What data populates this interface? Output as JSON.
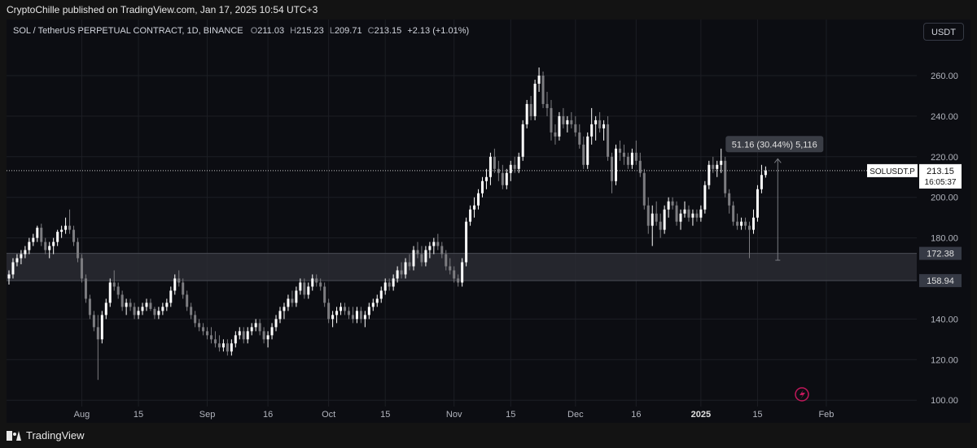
{
  "header": {
    "published_text": "CryptoChille published on TradingView.com, Jan 17, 2025 10:54 UTC+3"
  },
  "legend": {
    "symbol": "SOL / TetherUS PERPETUAL CONTRACT, 1D, BINANCE",
    "o_label": "O",
    "o_value": "211.03",
    "h_label": "H",
    "h_value": "215.23",
    "l_label": "L",
    "l_value": "209.71",
    "c_label": "C",
    "c_value": "213.15",
    "change": "+2.13 (+1.01%)"
  },
  "currency_button": "USDT",
  "footer": {
    "brand": "TradingView"
  },
  "colors": {
    "up_candle": "#ffffff",
    "down_candle": "#7c7c80",
    "zone_fill": "#2a2c33",
    "grid": "#1c1e24",
    "axis_text": "#b2b5be"
  },
  "chart_data": {
    "type": "candlestick",
    "symbol": "SOLUSDT.P",
    "timeframe": "1D",
    "ylim": [
      100,
      270
    ],
    "y_ticks": [
      "260.00",
      "240.00",
      "220.00",
      "200.00",
      "180.00",
      "140.00",
      "120.00",
      "100.00"
    ],
    "x_ticks": [
      {
        "label": "Aug",
        "date": "2024-08-01"
      },
      {
        "label": "15",
        "date": "2024-08-15"
      },
      {
        "label": "Sep",
        "date": "2024-09-01"
      },
      {
        "label": "16",
        "date": "2024-09-16"
      },
      {
        "label": "Oct",
        "date": "2024-10-01"
      },
      {
        "label": "15",
        "date": "2024-10-15"
      },
      {
        "label": "Nov",
        "date": "2024-11-01"
      },
      {
        "label": "15",
        "date": "2024-11-15"
      },
      {
        "label": "Dec",
        "date": "2024-12-01"
      },
      {
        "label": "16",
        "date": "2024-12-16"
      },
      {
        "label": "2025",
        "date": "2025-01-01",
        "bold": true
      },
      {
        "label": "15",
        "date": "2025-01-15"
      },
      {
        "label": "Feb",
        "date": "2025-02-01"
      }
    ],
    "last_price": {
      "label": "SOLUSDT.P",
      "price": "213.15",
      "value": 213.15,
      "countdown": "16:05:37"
    },
    "zone": {
      "top": 172.38,
      "bottom": 158.94,
      "top_label": "172.38",
      "bottom_label": "158.94"
    },
    "measure": {
      "from": 169,
      "to": 219,
      "date": "2025-01-20",
      "text": "51.16 (30.44%) 5,116"
    },
    "candles": [
      [
        "2024-07-14",
        160,
        164,
        157,
        162
      ],
      [
        "2024-07-15",
        162,
        170,
        160,
        168
      ],
      [
        "2024-07-16",
        168,
        172,
        166,
        170
      ],
      [
        "2024-07-17",
        170,
        174,
        167,
        172
      ],
      [
        "2024-07-18",
        172,
        176,
        170,
        174
      ],
      [
        "2024-07-19",
        174,
        180,
        172,
        178
      ],
      [
        "2024-07-20",
        178,
        182,
        176,
        180
      ],
      [
        "2024-07-21",
        180,
        186,
        178,
        185
      ],
      [
        "2024-07-22",
        185,
        187,
        176,
        178
      ],
      [
        "2024-07-23",
        178,
        180,
        172,
        174
      ],
      [
        "2024-07-24",
        174,
        178,
        170,
        176
      ],
      [
        "2024-07-25",
        176,
        180,
        172,
        178
      ],
      [
        "2024-07-26",
        178,
        184,
        176,
        183
      ],
      [
        "2024-07-27",
        183,
        186,
        180,
        184
      ],
      [
        "2024-07-28",
        184,
        190,
        182,
        186
      ],
      [
        "2024-07-29",
        186,
        194,
        182,
        184
      ],
      [
        "2024-07-30",
        184,
        186,
        176,
        178
      ],
      [
        "2024-07-31",
        178,
        180,
        168,
        170
      ],
      [
        "2024-08-01",
        170,
        172,
        158,
        160
      ],
      [
        "2024-08-02",
        160,
        162,
        148,
        150
      ],
      [
        "2024-08-03",
        150,
        152,
        140,
        142
      ],
      [
        "2024-08-04",
        142,
        144,
        134,
        136
      ],
      [
        "2024-08-05",
        136,
        142,
        110,
        130
      ],
      [
        "2024-08-06",
        130,
        144,
        128,
        142
      ],
      [
        "2024-08-07",
        142,
        150,
        140,
        148
      ],
      [
        "2024-08-08",
        148,
        160,
        146,
        158
      ],
      [
        "2024-08-09",
        158,
        164,
        154,
        156
      ],
      [
        "2024-08-10",
        156,
        158,
        150,
        152
      ],
      [
        "2024-08-11",
        152,
        154,
        144,
        146
      ],
      [
        "2024-08-12",
        146,
        150,
        142,
        148
      ],
      [
        "2024-08-13",
        148,
        150,
        144,
        146
      ],
      [
        "2024-08-14",
        146,
        148,
        140,
        142
      ],
      [
        "2024-08-15",
        142,
        146,
        140,
        144
      ],
      [
        "2024-08-16",
        144,
        148,
        142,
        146
      ],
      [
        "2024-08-17",
        146,
        150,
        144,
        148
      ],
      [
        "2024-08-18",
        148,
        150,
        144,
        145
      ],
      [
        "2024-08-19",
        145,
        146,
        140,
        142
      ],
      [
        "2024-08-20",
        142,
        146,
        140,
        144
      ],
      [
        "2024-08-21",
        144,
        148,
        142,
        146
      ],
      [
        "2024-08-22",
        146,
        150,
        144,
        148
      ],
      [
        "2024-08-23",
        148,
        156,
        146,
        154
      ],
      [
        "2024-08-24",
        154,
        162,
        152,
        160
      ],
      [
        "2024-08-25",
        160,
        164,
        156,
        158
      ],
      [
        "2024-08-26",
        158,
        160,
        150,
        152
      ],
      [
        "2024-08-27",
        152,
        154,
        144,
        146
      ],
      [
        "2024-08-28",
        146,
        148,
        140,
        142
      ],
      [
        "2024-08-29",
        142,
        144,
        136,
        138
      ],
      [
        "2024-08-30",
        138,
        140,
        134,
        136
      ],
      [
        "2024-08-31",
        136,
        138,
        132,
        134
      ],
      [
        "2024-09-01",
        134,
        136,
        130,
        132
      ],
      [
        "2024-09-02",
        132,
        136,
        128,
        130
      ],
      [
        "2024-09-03",
        130,
        134,
        126,
        128
      ],
      [
        "2024-09-04",
        128,
        132,
        124,
        126
      ],
      [
        "2024-09-05",
        126,
        130,
        124,
        128
      ],
      [
        "2024-09-06",
        128,
        130,
        122,
        124
      ],
      [
        "2024-09-07",
        124,
        130,
        122,
        128
      ],
      [
        "2024-09-08",
        128,
        134,
        126,
        132
      ],
      [
        "2024-09-09",
        132,
        136,
        130,
        134
      ],
      [
        "2024-09-10",
        134,
        136,
        128,
        130
      ],
      [
        "2024-09-11",
        130,
        136,
        128,
        134
      ],
      [
        "2024-09-12",
        134,
        138,
        132,
        136
      ],
      [
        "2024-09-13",
        136,
        140,
        134,
        138
      ],
      [
        "2024-09-14",
        138,
        140,
        132,
        134
      ],
      [
        "2024-09-15",
        134,
        136,
        128,
        130
      ],
      [
        "2024-09-16",
        130,
        134,
        126,
        132
      ],
      [
        "2024-09-17",
        132,
        138,
        130,
        136
      ],
      [
        "2024-09-18",
        136,
        142,
        134,
        140
      ],
      [
        "2024-09-19",
        140,
        146,
        138,
        144
      ],
      [
        "2024-09-20",
        144,
        148,
        140,
        146
      ],
      [
        "2024-09-21",
        146,
        152,
        144,
        150
      ],
      [
        "2024-09-22",
        150,
        154,
        146,
        148
      ],
      [
        "2024-09-23",
        148,
        156,
        146,
        154
      ],
      [
        "2024-09-24",
        154,
        160,
        152,
        158
      ],
      [
        "2024-09-25",
        158,
        160,
        150,
        152
      ],
      [
        "2024-09-26",
        152,
        158,
        150,
        156
      ],
      [
        "2024-09-27",
        156,
        162,
        154,
        160
      ],
      [
        "2024-09-28",
        160,
        162,
        156,
        158
      ],
      [
        "2024-09-29",
        158,
        160,
        154,
        156
      ],
      [
        "2024-09-30",
        156,
        158,
        146,
        148
      ],
      [
        "2024-10-01",
        148,
        150,
        138,
        140
      ],
      [
        "2024-10-02",
        140,
        144,
        136,
        142
      ],
      [
        "2024-10-03",
        142,
        146,
        138,
        144
      ],
      [
        "2024-10-04",
        144,
        148,
        142,
        146
      ],
      [
        "2024-10-05",
        146,
        148,
        142,
        144
      ],
      [
        "2024-10-06",
        144,
        146,
        140,
        142
      ],
      [
        "2024-10-07",
        142,
        146,
        138,
        140
      ],
      [
        "2024-10-08",
        140,
        146,
        138,
        144
      ],
      [
        "2024-10-09",
        144,
        146,
        138,
        140
      ],
      [
        "2024-10-10",
        140,
        144,
        136,
        142
      ],
      [
        "2024-10-11",
        142,
        148,
        140,
        146
      ],
      [
        "2024-10-12",
        146,
        150,
        144,
        148
      ],
      [
        "2024-10-13",
        148,
        152,
        146,
        150
      ],
      [
        "2024-10-14",
        150,
        156,
        148,
        154
      ],
      [
        "2024-10-15",
        154,
        160,
        152,
        158
      ],
      [
        "2024-10-16",
        158,
        160,
        154,
        156
      ],
      [
        "2024-10-17",
        156,
        162,
        154,
        160
      ],
      [
        "2024-10-18",
        160,
        166,
        158,
        164
      ],
      [
        "2024-10-19",
        164,
        168,
        160,
        162
      ],
      [
        "2024-10-20",
        162,
        170,
        160,
        168
      ],
      [
        "2024-10-21",
        168,
        172,
        164,
        166
      ],
      [
        "2024-10-22",
        166,
        176,
        164,
        174
      ],
      [
        "2024-10-23",
        174,
        178,
        170,
        172
      ],
      [
        "2024-10-24",
        172,
        176,
        166,
        168
      ],
      [
        "2024-10-25",
        168,
        176,
        166,
        174
      ],
      [
        "2024-10-26",
        174,
        178,
        170,
        176
      ],
      [
        "2024-10-27",
        176,
        180,
        172,
        178
      ],
      [
        "2024-10-28",
        178,
        182,
        174,
        176
      ],
      [
        "2024-10-29",
        176,
        178,
        170,
        172
      ],
      [
        "2024-10-30",
        172,
        174,
        164,
        166
      ],
      [
        "2024-10-31",
        166,
        170,
        162,
        164
      ],
      [
        "2024-11-01",
        164,
        166,
        158,
        160
      ],
      [
        "2024-11-02",
        160,
        162,
        156,
        158
      ],
      [
        "2024-11-03",
        158,
        170,
        156,
        168
      ],
      [
        "2024-11-04",
        168,
        190,
        166,
        188
      ],
      [
        "2024-11-05",
        188,
        196,
        186,
        194
      ],
      [
        "2024-11-06",
        194,
        200,
        190,
        196
      ],
      [
        "2024-11-07",
        196,
        204,
        194,
        202
      ],
      [
        "2024-11-08",
        202,
        210,
        200,
        208
      ],
      [
        "2024-11-09",
        208,
        214,
        204,
        210
      ],
      [
        "2024-11-10",
        210,
        222,
        206,
        220
      ],
      [
        "2024-11-11",
        220,
        224,
        212,
        214
      ],
      [
        "2024-11-12",
        214,
        218,
        208,
        212
      ],
      [
        "2024-11-13",
        212,
        216,
        204,
        206
      ],
      [
        "2024-11-14",
        206,
        214,
        204,
        212
      ],
      [
        "2024-11-15",
        212,
        218,
        208,
        216
      ],
      [
        "2024-11-16",
        216,
        220,
        212,
        214
      ],
      [
        "2024-11-17",
        214,
        222,
        212,
        220
      ],
      [
        "2024-11-18",
        220,
        238,
        218,
        236
      ],
      [
        "2024-11-19",
        236,
        248,
        234,
        246
      ],
      [
        "2024-11-20",
        246,
        250,
        238,
        240
      ],
      [
        "2024-11-21",
        240,
        258,
        238,
        256
      ],
      [
        "2024-11-22",
        256,
        264,
        252,
        260
      ],
      [
        "2024-11-23",
        260,
        262,
        244,
        246
      ],
      [
        "2024-11-24",
        246,
        252,
        240,
        244
      ],
      [
        "2024-11-25",
        244,
        248,
        228,
        232
      ],
      [
        "2024-11-26",
        232,
        236,
        226,
        230
      ],
      [
        "2024-11-27",
        230,
        242,
        228,
        240
      ],
      [
        "2024-11-28",
        240,
        244,
        234,
        236
      ],
      [
        "2024-11-29",
        236,
        240,
        232,
        238
      ],
      [
        "2024-11-30",
        238,
        242,
        234,
        236
      ],
      [
        "2024-12-01",
        236,
        240,
        230,
        232
      ],
      [
        "2024-12-02",
        232,
        236,
        224,
        226
      ],
      [
        "2024-12-03",
        226,
        230,
        214,
        216
      ],
      [
        "2024-12-04",
        216,
        232,
        214,
        230
      ],
      [
        "2024-12-05",
        230,
        244,
        226,
        236
      ],
      [
        "2024-12-06",
        236,
        240,
        228,
        238
      ],
      [
        "2024-12-07",
        238,
        242,
        232,
        234
      ],
      [
        "2024-12-08",
        234,
        238,
        228,
        236
      ],
      [
        "2024-12-09",
        236,
        240,
        218,
        220
      ],
      [
        "2024-12-10",
        220,
        222,
        202,
        208
      ],
      [
        "2024-12-11",
        208,
        226,
        206,
        224
      ],
      [
        "2024-12-12",
        224,
        228,
        218,
        222
      ],
      [
        "2024-12-13",
        222,
        226,
        216,
        220
      ],
      [
        "2024-12-14",
        220,
        222,
        214,
        216
      ],
      [
        "2024-12-15",
        216,
        224,
        214,
        222
      ],
      [
        "2024-12-16",
        222,
        228,
        216,
        218
      ],
      [
        "2024-12-17",
        218,
        222,
        210,
        212
      ],
      [
        "2024-12-18",
        212,
        214,
        194,
        196
      ],
      [
        "2024-12-19",
        196,
        200,
        182,
        186
      ],
      [
        "2024-12-20",
        186,
        196,
        176,
        192
      ],
      [
        "2024-12-21",
        192,
        198,
        186,
        188
      ],
      [
        "2024-12-22",
        188,
        192,
        180,
        184
      ],
      [
        "2024-12-23",
        184,
        196,
        182,
        194
      ],
      [
        "2024-12-24",
        194,
        200,
        190,
        198
      ],
      [
        "2024-12-25",
        198,
        200,
        194,
        196
      ],
      [
        "2024-12-26",
        196,
        198,
        186,
        188
      ],
      [
        "2024-12-27",
        188,
        194,
        184,
        192
      ],
      [
        "2024-12-28",
        192,
        198,
        190,
        194
      ],
      [
        "2024-12-29",
        194,
        196,
        188,
        190
      ],
      [
        "2024-12-30",
        190,
        194,
        186,
        192
      ],
      [
        "2024-12-31",
        192,
        194,
        188,
        190
      ],
      [
        "2025-01-01",
        190,
        196,
        188,
        194
      ],
      [
        "2025-01-02",
        194,
        208,
        192,
        206
      ],
      [
        "2025-01-03",
        206,
        218,
        204,
        216
      ],
      [
        "2025-01-04",
        216,
        220,
        212,
        214
      ],
      [
        "2025-01-05",
        214,
        218,
        210,
        216
      ],
      [
        "2025-01-06",
        216,
        224,
        212,
        218
      ],
      [
        "2025-01-07",
        218,
        220,
        200,
        202
      ],
      [
        "2025-01-08",
        202,
        204,
        192,
        196
      ],
      [
        "2025-01-09",
        196,
        198,
        186,
        188
      ],
      [
        "2025-01-10",
        188,
        192,
        184,
        186
      ],
      [
        "2025-01-11",
        186,
        190,
        184,
        188
      ],
      [
        "2025-01-12",
        188,
        190,
        184,
        186
      ],
      [
        "2025-01-13",
        186,
        188,
        170,
        184
      ],
      [
        "2025-01-14",
        184,
        194,
        182,
        190
      ],
      [
        "2025-01-15",
        190,
        206,
        188,
        204
      ],
      [
        "2025-01-16",
        204,
        216,
        202,
        211
      ],
      [
        "2025-01-17",
        211,
        215.23,
        209.71,
        213.15
      ]
    ]
  }
}
